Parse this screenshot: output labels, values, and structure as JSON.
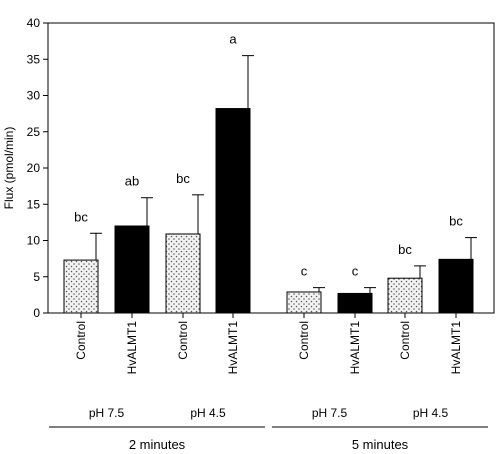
{
  "chart_data": {
    "type": "bar",
    "ylabel": "Flux (pmol/min)",
    "ylim": [
      0,
      40
    ],
    "yticks": [
      0,
      5,
      10,
      15,
      20,
      25,
      30,
      35,
      40
    ],
    "bars": [
      {
        "category": "Control",
        "group": "pH 7.5",
        "time": "2 minutes",
        "value": 7.3,
        "error": 3.7,
        "letters": "bc",
        "fill": "dotted"
      },
      {
        "category": "HvALMT1",
        "group": "pH 7.5",
        "time": "2 minutes",
        "value": 12.0,
        "error": 3.9,
        "letters": "ab",
        "fill": "solid"
      },
      {
        "category": "Control",
        "group": "pH 4.5",
        "time": "2 minutes",
        "value": 10.9,
        "error": 5.4,
        "letters": "bc",
        "fill": "dotted"
      },
      {
        "category": "HvALMT1",
        "group": "pH 4.5",
        "time": "2 minutes",
        "value": 28.2,
        "error": 7.3,
        "letters": "a",
        "fill": "solid"
      },
      {
        "category": "Control",
        "group": "pH 7.5",
        "time": "5 minutes",
        "value": 2.9,
        "error": 0.6,
        "letters": "c",
        "fill": "dotted"
      },
      {
        "category": "HvALMT1",
        "group": "pH 7.5",
        "time": "5 minutes",
        "value": 2.7,
        "error": 0.8,
        "letters": "c",
        "fill": "solid"
      },
      {
        "category": "Control",
        "group": "pH 4.5",
        "time": "5 minutes",
        "value": 4.8,
        "error": 1.7,
        "letters": "bc",
        "fill": "dotted"
      },
      {
        "category": "HvALMT1",
        "group": "pH 4.5",
        "time": "5 minutes",
        "value": 7.4,
        "error": 3.0,
        "letters": "bc",
        "fill": "solid"
      }
    ],
    "groups": [
      {
        "label": "pH 7.5",
        "time": "2 minutes"
      },
      {
        "label": "pH 4.5",
        "time": "2 minutes"
      },
      {
        "label": "pH 7.5",
        "time": "5 minutes"
      },
      {
        "label": "pH 4.5",
        "time": "5 minutes"
      }
    ],
    "times": [
      "2 minutes",
      "5 minutes"
    ],
    "colors": {
      "solid": "#000000",
      "dotted_bg": "#f2f2f2",
      "dot": "#555555"
    }
  }
}
